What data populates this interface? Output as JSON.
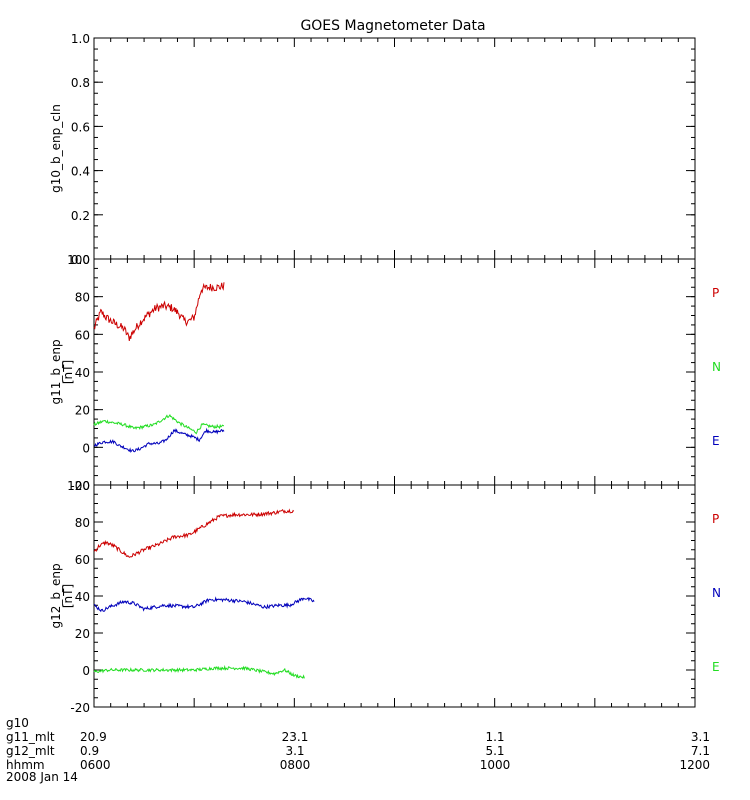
{
  "chart_data": {
    "type": "line",
    "title": "GOES Magnetometer Data",
    "x_ticks": [
      "0600",
      "0800",
      "1000",
      "1200"
    ],
    "footer": {
      "rows": [
        {
          "label": "g10",
          "values": []
        },
        {
          "label": "g11_mlt",
          "values": [
            "20.9",
            "23.1",
            "1.1",
            "3.1"
          ]
        },
        {
          "label": "g12_mlt",
          "values": [
            "0.9",
            "3.1",
            "5.1",
            "7.1"
          ]
        },
        {
          "label": "hhmm",
          "values": [
            "0600",
            "0800",
            "1000",
            "1200"
          ]
        },
        {
          "label": "2008 Jan 14",
          "values": []
        }
      ]
    },
    "panels": [
      {
        "ylabel": "g10_b_enp_cln",
        "ylim": [
          0,
          1.0
        ],
        "yticks": [
          "0.0",
          "0.2",
          "0.4",
          "0.6",
          "0.8",
          "1.0"
        ],
        "series": []
      },
      {
        "ylabel": "g11_b_enp",
        "unit": "[nT]",
        "ylim": [
          -20,
          100
        ],
        "yticks": [
          "-20",
          "0",
          "20",
          "40",
          "60",
          "80",
          "100"
        ],
        "series": [
          {
            "name": "P",
            "color": "#cc0000",
            "noise": 2.2,
            "points": [
              [
                0,
                63
              ],
              [
                0.03,
                67
              ],
              [
                0.07,
                72
              ],
              [
                0.12,
                69
              ],
              [
                0.2,
                66
              ],
              [
                0.3,
                63
              ],
              [
                0.35,
                58
              ],
              [
                0.4,
                62
              ],
              [
                0.47,
                67
              ],
              [
                0.55,
                71
              ],
              [
                0.62,
                74
              ],
              [
                0.7,
                75
              ],
              [
                0.78,
                74
              ],
              [
                0.85,
                71
              ],
              [
                0.9,
                67
              ],
              [
                0.95,
                67
              ],
              [
                1.0,
                69
              ],
              [
                1.07,
                84
              ],
              [
                1.15,
                85
              ],
              [
                1.25,
                85
              ],
              [
                1.3,
                86
              ]
            ]
          },
          {
            "name": "N",
            "color": "#22dd22",
            "noise": 0.8,
            "points": [
              [
                0,
                12
              ],
              [
                0.1,
                14
              ],
              [
                0.3,
                12
              ],
              [
                0.4,
                10
              ],
              [
                0.6,
                12
              ],
              [
                0.75,
                17
              ],
              [
                0.85,
                13
              ],
              [
                0.95,
                10
              ],
              [
                1.02,
                8
              ],
              [
                1.08,
                12
              ],
              [
                1.18,
                11
              ],
              [
                1.3,
                11
              ]
            ]
          },
          {
            "name": "E",
            "color": "#0000bb",
            "noise": 0.8,
            "points": [
              [
                0,
                1
              ],
              [
                0.1,
                3
              ],
              [
                0.2,
                3
              ],
              [
                0.25,
                1
              ],
              [
                0.3,
                0
              ],
              [
                0.38,
                -2
              ],
              [
                0.45,
                -1
              ],
              [
                0.55,
                2
              ],
              [
                0.65,
                2
              ],
              [
                0.72,
                4
              ],
              [
                0.8,
                9
              ],
              [
                0.9,
                7
              ],
              [
                0.97,
                6
              ],
              [
                1.05,
                4
              ],
              [
                1.12,
                9
              ],
              [
                1.2,
                8
              ],
              [
                1.3,
                9
              ]
            ]
          }
        ]
      },
      {
        "ylabel": "g12_b_enp",
        "unit": "[nT]",
        "ylim": [
          -20,
          100
        ],
        "yticks": [
          "-20",
          "0",
          "20",
          "40",
          "60",
          "80",
          "100"
        ],
        "series": [
          {
            "name": "P",
            "color": "#cc0000",
            "noise": 1.0,
            "points": [
              [
                0,
                64
              ],
              [
                0.05,
                67
              ],
              [
                0.12,
                69
              ],
              [
                0.2,
                67
              ],
              [
                0.3,
                63
              ],
              [
                0.35,
                61
              ],
              [
                0.5,
                65
              ],
              [
                0.65,
                68
              ],
              [
                0.8,
                72
              ],
              [
                0.95,
                73
              ],
              [
                1.1,
                78
              ],
              [
                1.25,
                83
              ],
              [
                1.4,
                84
              ],
              [
                1.6,
                84
              ],
              [
                1.8,
                85
              ],
              [
                1.9,
                86
              ],
              [
                2.0,
                86
              ]
            ]
          },
          {
            "name": "N",
            "color": "#0000bb",
            "noise": 0.9,
            "points": [
              [
                0,
                35
              ],
              [
                0.08,
                32
              ],
              [
                0.15,
                34
              ],
              [
                0.3,
                37
              ],
              [
                0.4,
                36
              ],
              [
                0.5,
                33
              ],
              [
                0.7,
                35
              ],
              [
                1.0,
                34
              ],
              [
                1.15,
                38
              ],
              [
                1.3,
                38
              ],
              [
                1.5,
                37
              ],
              [
                1.7,
                34
              ],
              [
                1.85,
                35
              ],
              [
                1.95,
                35
              ],
              [
                2.1,
                39
              ],
              [
                2.2,
                37
              ]
            ]
          },
          {
            "name": "E",
            "color": "#22dd22",
            "noise": 0.8,
            "points": [
              [
                0,
                -1
              ],
              [
                0.15,
                0
              ],
              [
                0.4,
                0
              ],
              [
                0.7,
                0
              ],
              [
                1.0,
                0
              ],
              [
                1.2,
                1
              ],
              [
                1.5,
                1
              ],
              [
                1.7,
                -1
              ],
              [
                1.8,
                -2
              ],
              [
                1.9,
                0
              ],
              [
                2.0,
                -3
              ],
              [
                2.1,
                -4
              ]
            ]
          }
        ]
      }
    ]
  }
}
